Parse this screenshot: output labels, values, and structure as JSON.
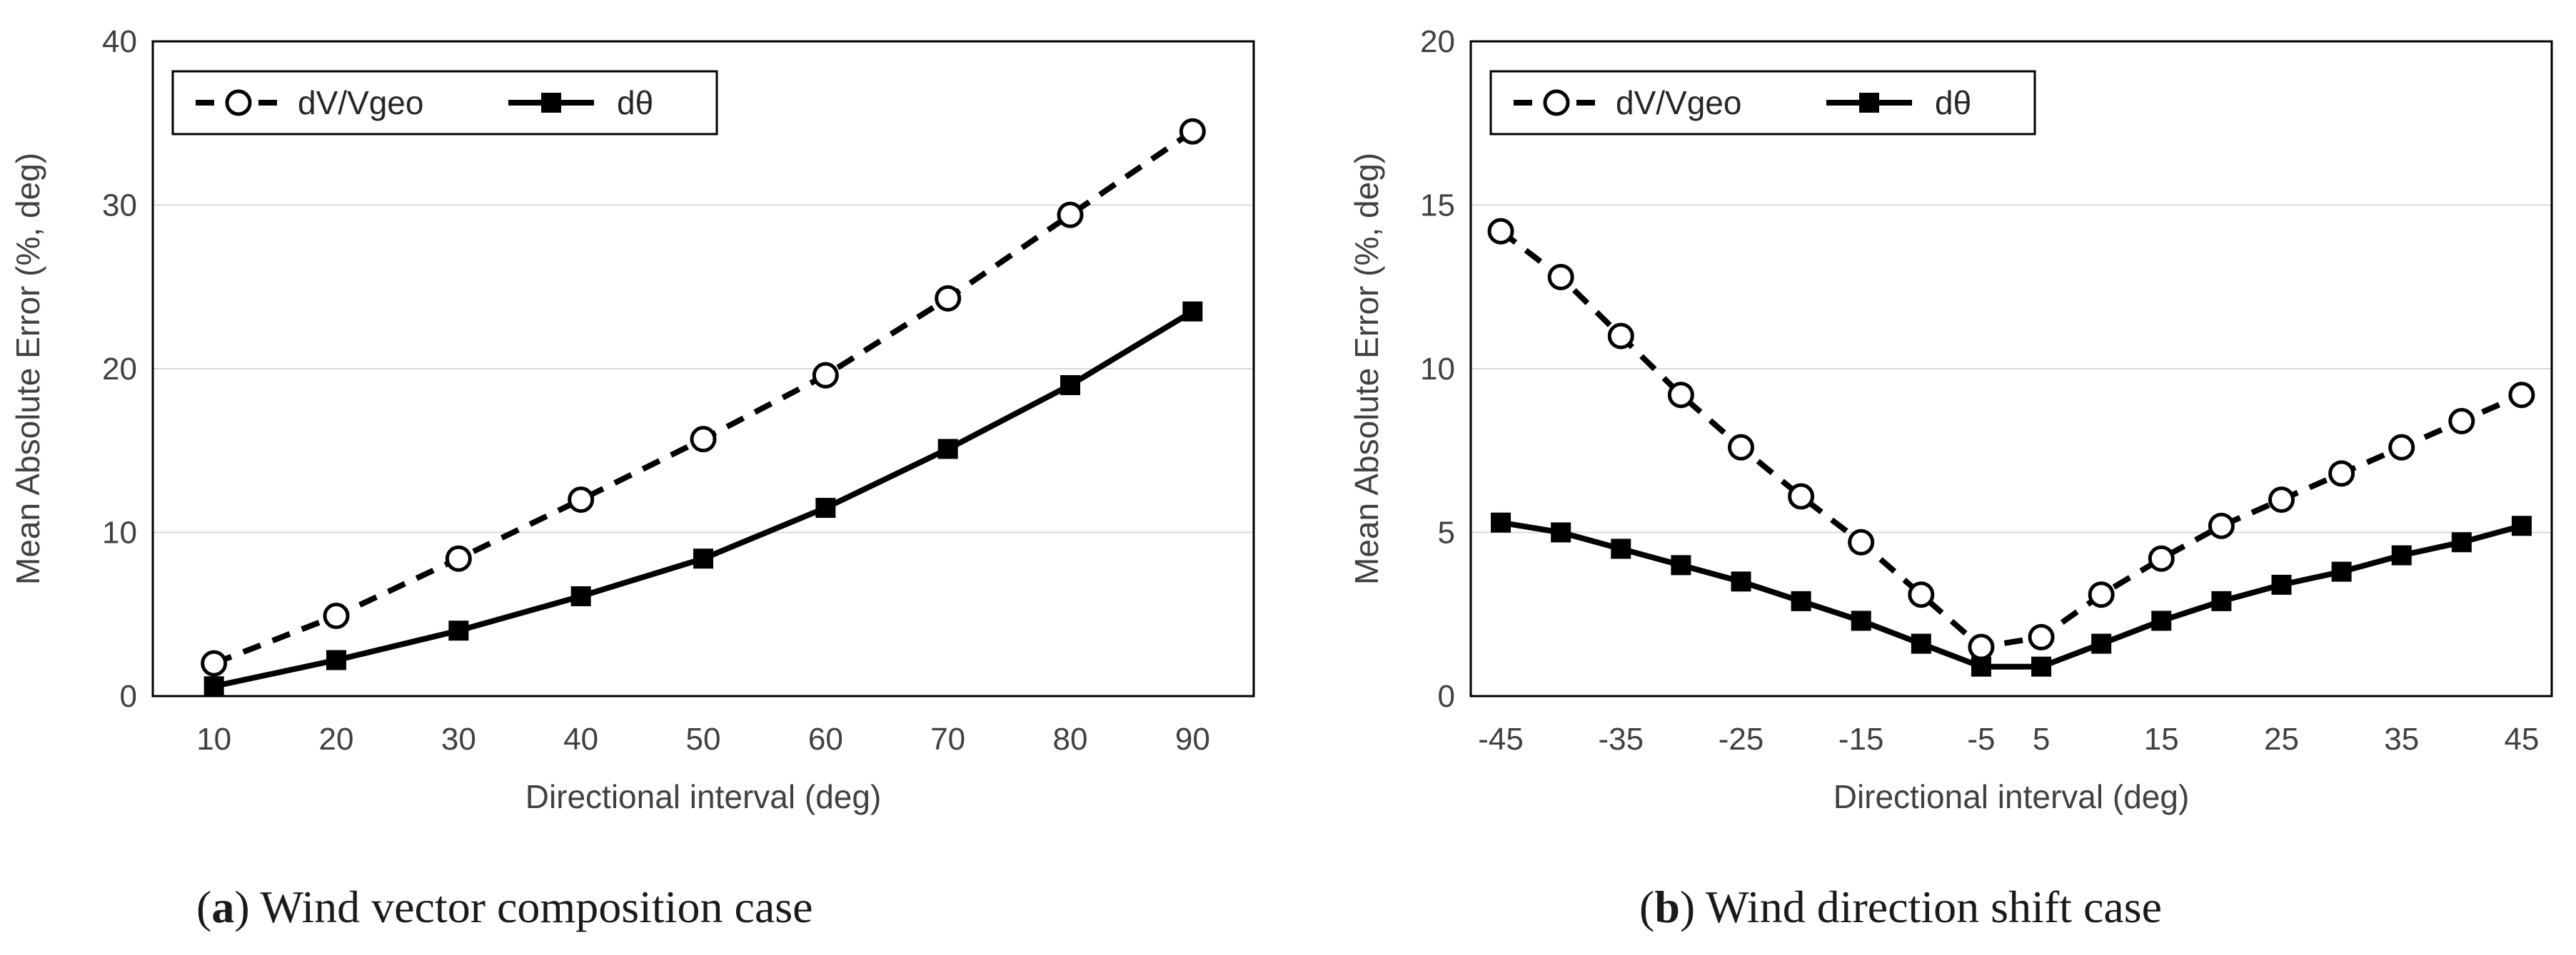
{
  "chart_data": [
    {
      "type": "line",
      "x": [
        10,
        20,
        30,
        40,
        50,
        60,
        70,
        80,
        90
      ],
      "x_tick_labels": [
        "10",
        "20",
        "30",
        "40",
        "50",
        "60",
        "70",
        "80",
        "90"
      ],
      "y_tick_labels": [
        "0",
        "10",
        "20",
        "30",
        "40"
      ],
      "ylim": [
        0,
        40
      ],
      "xlabel": "Directional interval (deg)",
      "ylabel": "Mean Absolute Error (%, deg)",
      "grid": "horizontal",
      "legend_position": "top-left",
      "series": [
        {
          "name": "dV/Vgeo",
          "style": "dashed",
          "marker": "open-circle",
          "color": "#000000",
          "values": [
            2.0,
            4.9,
            8.4,
            12.0,
            15.7,
            19.6,
            24.3,
            29.4,
            34.5
          ]
        },
        {
          "name": "dθ",
          "style": "solid",
          "marker": "filled-square",
          "color": "#000000",
          "values": [
            0.6,
            2.2,
            4.0,
            6.1,
            8.4,
            11.5,
            15.1,
            19.0,
            23.5
          ]
        }
      ],
      "caption_label": "(a)",
      "caption_text": "Wind vector composition case"
    },
    {
      "type": "line",
      "x": [
        -45,
        -40,
        -35,
        -30,
        -25,
        -20,
        -15,
        -10,
        -5,
        5,
        10,
        15,
        20,
        25,
        30,
        35,
        40,
        45
      ],
      "x_tick_labels": [
        "-45",
        "-35",
        "-25",
        "-15",
        "-5",
        "5",
        "15",
        "25",
        "35",
        "45"
      ],
      "y_tick_labels": [
        "0",
        "5",
        "10",
        "15",
        "20"
      ],
      "ylim": [
        0,
        20
      ],
      "xlabel": "Directional interval (deg)",
      "ylabel": "Mean Absolute Error (%, deg)",
      "grid": "horizontal",
      "legend_position": "top-left",
      "series": [
        {
          "name": "dV/Vgeo",
          "style": "dashed",
          "marker": "open-circle",
          "color": "#000000",
          "values": [
            14.2,
            12.8,
            11.0,
            9.2,
            7.6,
            6.1,
            4.7,
            3.1,
            1.5,
            1.8,
            3.1,
            4.2,
            5.2,
            6.0,
            6.8,
            7.6,
            8.4,
            9.2
          ]
        },
        {
          "name": "dθ",
          "style": "solid",
          "marker": "filled-square",
          "color": "#000000",
          "values": [
            5.3,
            5.0,
            4.5,
            4.0,
            3.5,
            2.9,
            2.3,
            1.6,
            0.9,
            0.9,
            1.6,
            2.3,
            2.9,
            3.4,
            3.8,
            4.3,
            4.7,
            5.2
          ]
        }
      ],
      "caption_label": "(b)",
      "caption_text": "Wind direction shift case"
    }
  ]
}
